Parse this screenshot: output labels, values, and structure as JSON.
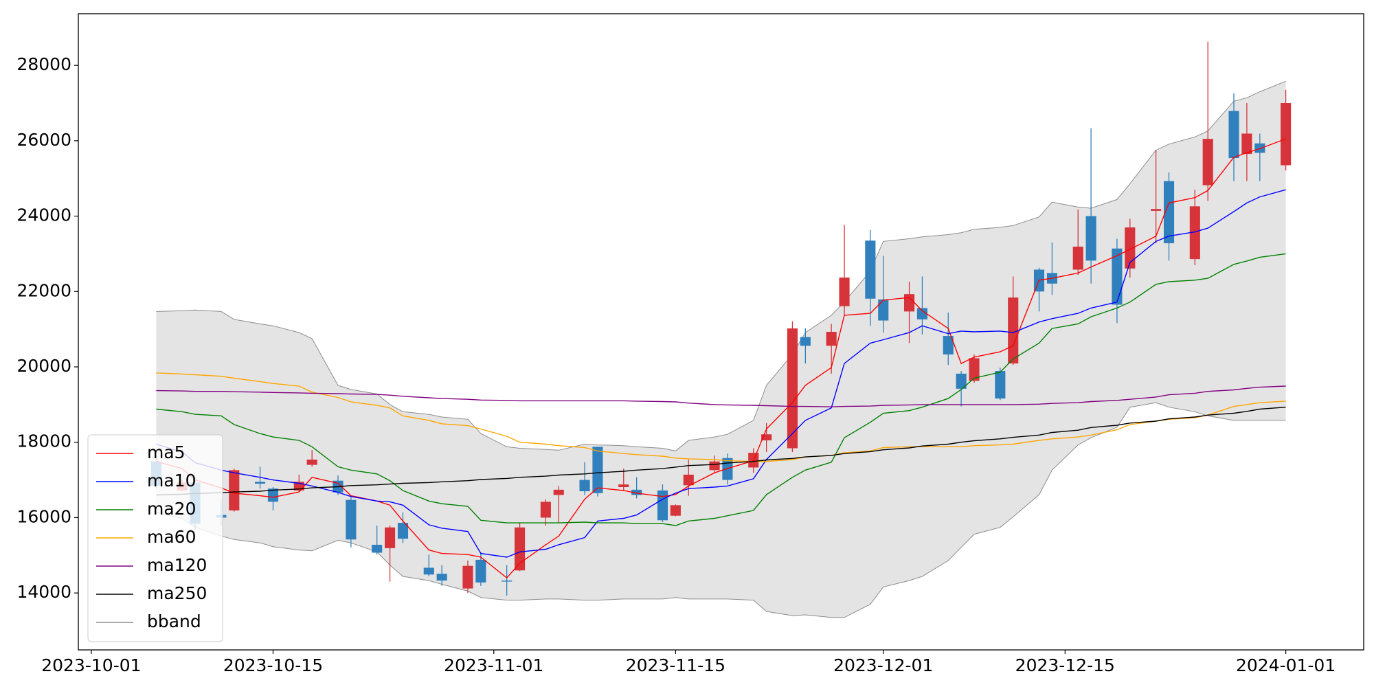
{
  "chart_data": {
    "type": "candlestick",
    "x": [
      "2023-10-06",
      "2023-10-08",
      "2023-10-09",
      "2023-10-11",
      "2023-10-12",
      "2023-10-14",
      "2023-10-15",
      "2023-10-17",
      "2023-10-18",
      "2023-10-20",
      "2023-10-21",
      "2023-10-23",
      "2023-10-24",
      "2023-10-25",
      "2023-10-27",
      "2023-10-28",
      "2023-10-30",
      "2023-10-31",
      "2023-11-02",
      "2023-11-03",
      "2023-11-05",
      "2023-11-06",
      "2023-11-08",
      "2023-11-09",
      "2023-11-11",
      "2023-11-12",
      "2023-11-14",
      "2023-11-15",
      "2023-11-16",
      "2023-11-18",
      "2023-11-19",
      "2023-11-21",
      "2023-11-22",
      "2023-11-24",
      "2023-11-25",
      "2023-11-27",
      "2023-11-28",
      "2023-11-30",
      "2023-12-01",
      "2023-12-03",
      "2023-12-04",
      "2023-12-06",
      "2023-12-07",
      "2023-12-08",
      "2023-12-10",
      "2023-12-11",
      "2023-12-13",
      "2023-12-14",
      "2023-12-16",
      "2023-12-17",
      "2023-12-19",
      "2023-12-20",
      "2023-12-22",
      "2023-12-23",
      "2023-12-25",
      "2023-12-26",
      "2023-12-28",
      "2023-12-29",
      "2023-12-30",
      "2024-01-01"
    ],
    "open": [
      17490,
      16720,
      16930,
      16070,
      16190,
      16950,
      16770,
      16720,
      17400,
      16980,
      16470,
      15280,
      15190,
      15860,
      14670,
      14510,
      14120,
      14880,
      14330,
      14600,
      16000,
      16600,
      17000,
      17880,
      16810,
      16740,
      16720,
      16050,
      16860,
      17260,
      17580,
      17330,
      18050,
      17840,
      20790,
      20560,
      21610,
      23350,
      21790,
      21470,
      21560,
      20820,
      19820,
      19630,
      19890,
      20090,
      22580,
      22490,
      22580,
      24000,
      23140,
      22610,
      24140,
      24930,
      22860,
      24820,
      26790,
      25650,
      25930,
      25350
    ],
    "high": [
      17650,
      17000,
      17070,
      16490,
      17300,
      17350,
      16810,
      17140,
      17790,
      17120,
      16540,
      15790,
      15790,
      16140,
      15020,
      14740,
      14860,
      15090,
      14740,
      15860,
      16490,
      16840,
      17470,
      17880,
      17300,
      17070,
      16880,
      16350,
      17540,
      17650,
      17700,
      17840,
      18510,
      21210,
      21020,
      21140,
      23770,
      23630,
      22950,
      22260,
      22400,
      21440,
      19890,
      20330,
      19980,
      22400,
      22630,
      23300,
      24170,
      26330,
      23400,
      23930,
      25750,
      25160,
      24700,
      28630,
      27260,
      27000,
      26190,
      27350
    ],
    "low": [
      16770,
      16700,
      15670,
      15790,
      16160,
      16770,
      16190,
      16680,
      17350,
      16600,
      15210,
      15020,
      14300,
      15330,
      14440,
      14190,
      14000,
      14190,
      13930,
      14580,
      15790,
      15860,
      16600,
      16560,
      16720,
      16510,
      15880,
      16040,
      16580,
      17190,
      16880,
      17190,
      17740,
      17740,
      20090,
      19820,
      21370,
      21090,
      20910,
      20630,
      20860,
      20050,
      18950,
      19580,
      19120,
      20050,
      21470,
      21910,
      22440,
      22210,
      21160,
      22370,
      23280,
      22820,
      22700,
      24400,
      24930,
      24930,
      24930,
      25210
    ],
    "close": [
      16840,
      16930,
      15840,
      16000,
      17260,
      16900,
      16420,
      16950,
      17540,
      16670,
      15420,
      15070,
      15740,
      15440,
      14490,
      14330,
      14720,
      14280,
      14320,
      15740,
      16420,
      16740,
      16700,
      16650,
      16880,
      16600,
      15930,
      16330,
      17140,
      17490,
      17000,
      17720,
      18210,
      21020,
      20560,
      20930,
      22370,
      21810,
      21230,
      21930,
      21260,
      20330,
      19420,
      20230,
      19160,
      21840,
      22000,
      22210,
      23190,
      22820,
      21650,
      23700,
      24190,
      23280,
      24260,
      26050,
      25540,
      26190,
      25680,
      27000
    ],
    "up_color": "#d6343a",
    "down_color": "#2f80bd",
    "series": [
      {
        "name": "ma5",
        "color": "#ff0000",
        "values": [
          17490,
          17300,
          17000,
          16790,
          16650,
          16580,
          16540,
          16680,
          17070,
          16910,
          16580,
          16440,
          16330,
          15910,
          15140,
          15050,
          15020,
          14950,
          14400,
          14790,
          15280,
          15510,
          16490,
          16790,
          16720,
          16650,
          16560,
          16610,
          16840,
          17190,
          17300,
          17510,
          18350,
          19050,
          19510,
          19980,
          21370,
          21420,
          21770,
          21840,
          21490,
          21020,
          20090,
          20260,
          20400,
          20560,
          22300,
          22350,
          22490,
          22650,
          22950,
          23120,
          23470,
          24350,
          24490,
          24680,
          25560,
          25680,
          25790,
          26050
        ]
      },
      {
        "name": "ma10",
        "color": "#0000ff",
        "values": [
          17950,
          17740,
          17460,
          17260,
          17190,
          17070,
          17000,
          16910,
          16840,
          16670,
          16560,
          16440,
          16420,
          16330,
          15810,
          15720,
          15630,
          15050,
          14950,
          15090,
          15160,
          15280,
          15470,
          15910,
          15980,
          16070,
          16490,
          16650,
          16770,
          16810,
          16840,
          17030,
          17540,
          18230,
          18580,
          18910,
          20090,
          20630,
          20720,
          20910,
          21090,
          20880,
          20950,
          20930,
          20950,
          20910,
          21190,
          21280,
          21420,
          21560,
          21720,
          22770,
          23330,
          23470,
          23580,
          23680,
          24120,
          24350,
          24510,
          24700
        ]
      },
      {
        "name": "ma20",
        "color": "#008000",
        "values": [
          18880,
          18810,
          18740,
          18700,
          18470,
          18230,
          18140,
          18050,
          17880,
          17350,
          17260,
          17160,
          16980,
          16720,
          16440,
          16370,
          16300,
          15930,
          15860,
          15860,
          15860,
          15860,
          15880,
          15860,
          15860,
          15840,
          15840,
          15790,
          15910,
          15980,
          16050,
          16190,
          16610,
          17070,
          17260,
          17470,
          18120,
          18530,
          18770,
          18840,
          18930,
          19160,
          19400,
          19700,
          19860,
          20210,
          20630,
          21020,
          21140,
          21330,
          21560,
          21720,
          22190,
          22260,
          22300,
          22350,
          22720,
          22810,
          22910,
          23000
        ]
      },
      {
        "name": "ma60",
        "color": "#ffa500",
        "values": [
          19840,
          19810,
          19790,
          19750,
          19700,
          19610,
          19560,
          19490,
          19330,
          19190,
          19070,
          18980,
          18910,
          18700,
          18580,
          18490,
          18440,
          18350,
          18160,
          18000,
          17950,
          17910,
          17860,
          17770,
          17700,
          17670,
          17630,
          17580,
          17560,
          17540,
          17510,
          17490,
          17490,
          17540,
          17610,
          17650,
          17720,
          17770,
          17860,
          17880,
          17880,
          17880,
          17880,
          17910,
          17930,
          17950,
          18050,
          18090,
          18140,
          18190,
          18330,
          18470,
          18560,
          18610,
          18650,
          18720,
          18950,
          19000,
          19050,
          19090
        ]
      },
      {
        "name": "ma120",
        "color": "#800080",
        "values": [
          19370,
          19360,
          19350,
          19350,
          19340,
          19330,
          19320,
          19310,
          19300,
          19290,
          19280,
          19270,
          19250,
          19220,
          19180,
          19160,
          19140,
          19120,
          19110,
          19100,
          19100,
          19100,
          19100,
          19100,
          19100,
          19090,
          19080,
          19070,
          19040,
          19000,
          18990,
          18980,
          18970,
          18950,
          18950,
          18940,
          18950,
          18960,
          18980,
          18990,
          19000,
          19000,
          19000,
          19000,
          19000,
          19000,
          19010,
          19030,
          19050,
          19080,
          19110,
          19140,
          19200,
          19260,
          19300,
          19350,
          19390,
          19430,
          19460,
          19490
        ]
      },
      {
        "name": "ma250",
        "color": "#000000",
        "values": [
          16600,
          16620,
          16640,
          16660,
          16680,
          16700,
          16730,
          16760,
          16790,
          16820,
          16850,
          16870,
          16890,
          16910,
          16930,
          16950,
          16980,
          17010,
          17040,
          17070,
          17100,
          17130,
          17160,
          17190,
          17230,
          17260,
          17300,
          17340,
          17380,
          17410,
          17450,
          17490,
          17530,
          17570,
          17610,
          17650,
          17700,
          17750,
          17800,
          17850,
          17900,
          17950,
          18000,
          18040,
          18090,
          18130,
          18190,
          18260,
          18320,
          18390,
          18450,
          18510,
          18560,
          18620,
          18670,
          18720,
          18770,
          18820,
          18880,
          18930
        ]
      }
    ],
    "bband": {
      "name": "bband",
      "color": "#8c8c8c",
      "fill": "#e4e4e4",
      "upper": [
        21470,
        21490,
        21510,
        21470,
        21260,
        21140,
        21090,
        20910,
        20750,
        19510,
        19400,
        19280,
        19000,
        18810,
        18740,
        18670,
        18610,
        18230,
        17880,
        17840,
        17810,
        17790,
        17950,
        17930,
        17910,
        17880,
        17840,
        17770,
        18050,
        18140,
        18210,
        18580,
        19510,
        20330,
        20910,
        21370,
        21720,
        22540,
        23330,
        23400,
        23450,
        23510,
        23560,
        23650,
        23700,
        23750,
        23980,
        24370,
        24240,
        24210,
        24440,
        24860,
        25750,
        25910,
        26100,
        26260,
        27050,
        27140,
        27300,
        27580
      ],
      "lower": [
        16140,
        15980,
        15740,
        15510,
        15420,
        15330,
        15230,
        15140,
        15120,
        15400,
        15330,
        15090,
        14740,
        14440,
        14330,
        14230,
        14050,
        13880,
        13810,
        13810,
        13840,
        13840,
        13810,
        13810,
        13840,
        13840,
        13840,
        13880,
        13840,
        13840,
        13840,
        13810,
        13510,
        13400,
        13420,
        13350,
        13350,
        13700,
        14160,
        14330,
        14440,
        14860,
        15210,
        15560,
        15740,
        16020,
        16610,
        17260,
        17930,
        18120,
        18400,
        18930,
        19050,
        18930,
        18810,
        18700,
        18580,
        18580,
        18580,
        18580
      ]
    },
    "xlim": [
      "2023-09-30",
      "2024-01-07"
    ],
    "xticks": [
      "2023-10-01",
      "2023-10-15",
      "2023-11-01",
      "2023-11-15",
      "2023-12-01",
      "2023-12-15",
      "2024-01-01"
    ],
    "ylim": [
      12490,
      29370
    ],
    "yticks": [
      14000,
      16000,
      18000,
      20000,
      22000,
      24000,
      26000,
      28000
    ],
    "legend": "lower left"
  }
}
